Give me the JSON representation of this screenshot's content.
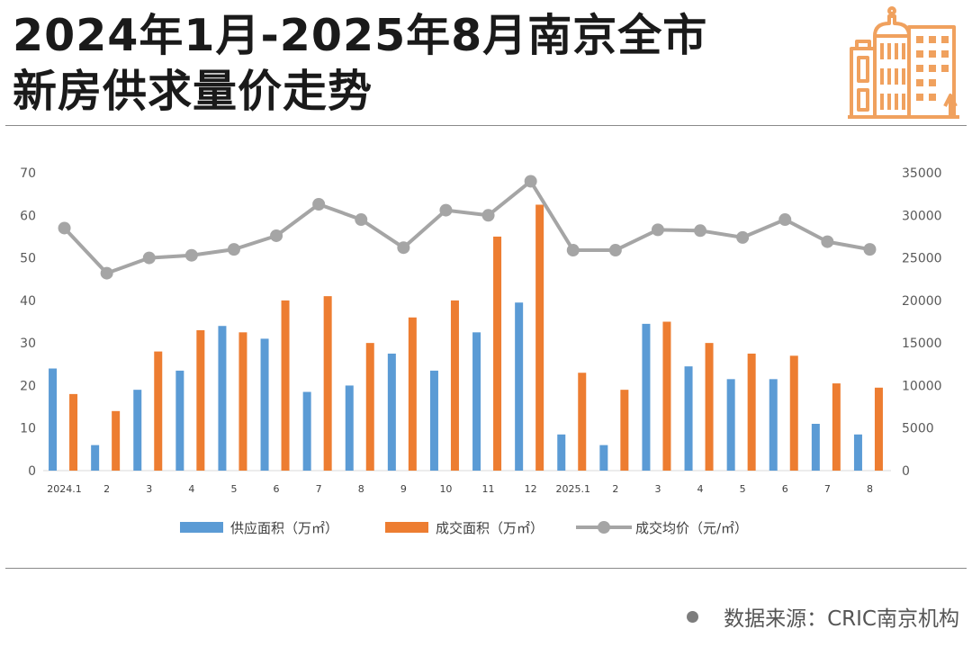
{
  "title": {
    "line1": "2024年1月-2025年8月南京全市",
    "line2": "新房供求量价走势"
  },
  "logo_icon": "city-buildings-icon",
  "colors": {
    "supply": "#5b9bd5",
    "deal": "#ed7d31",
    "price": "#a5a5a5",
    "logo": "#f0a15e"
  },
  "chart_data": {
    "type": "bar",
    "categories": [
      "2024.1",
      "2",
      "3",
      "4",
      "5",
      "6",
      "7",
      "8",
      "9",
      "10",
      "11",
      "12",
      "2025.1",
      "2",
      "3",
      "4",
      "5",
      "6",
      "7",
      "8"
    ],
    "series": [
      {
        "name": "供应面积（万㎡）",
        "type": "bar",
        "axis": "left",
        "color": "#5b9bd5",
        "values": [
          24,
          6,
          19,
          23.5,
          34,
          31,
          18.5,
          20,
          27.5,
          23.5,
          32.5,
          39.5,
          8.5,
          6,
          34.5,
          24.5,
          21.5,
          21.5,
          11,
          8.5
        ]
      },
      {
        "name": "成交面积（万㎡）",
        "type": "bar",
        "axis": "left",
        "color": "#ed7d31",
        "values": [
          18,
          14,
          28,
          33,
          32.5,
          40,
          41,
          30,
          36,
          40,
          55,
          62.5,
          23,
          19,
          35,
          30,
          27.5,
          27,
          20.5,
          19.5
        ]
      },
      {
        "name": "成交均价（元/㎡）",
        "type": "line",
        "axis": "right",
        "color": "#a5a5a5",
        "values": [
          28500,
          23200,
          25000,
          25300,
          26000,
          27600,
          31300,
          29500,
          26200,
          30600,
          30000,
          34000,
          25900,
          25900,
          28300,
          28200,
          27400,
          29500,
          26900,
          26000
        ]
      }
    ],
    "yaxis_left": {
      "min": 0,
      "max": 70,
      "ticks": [
        0,
        10,
        20,
        30,
        40,
        50,
        60,
        70
      ]
    },
    "yaxis_right": {
      "min": 0,
      "max": 35000,
      "ticks": [
        0,
        5000,
        10000,
        15000,
        20000,
        25000,
        30000,
        35000
      ]
    },
    "legend_position": "bottom",
    "grid": false
  },
  "source": {
    "label": "数据来源：CRIC南京机构"
  }
}
